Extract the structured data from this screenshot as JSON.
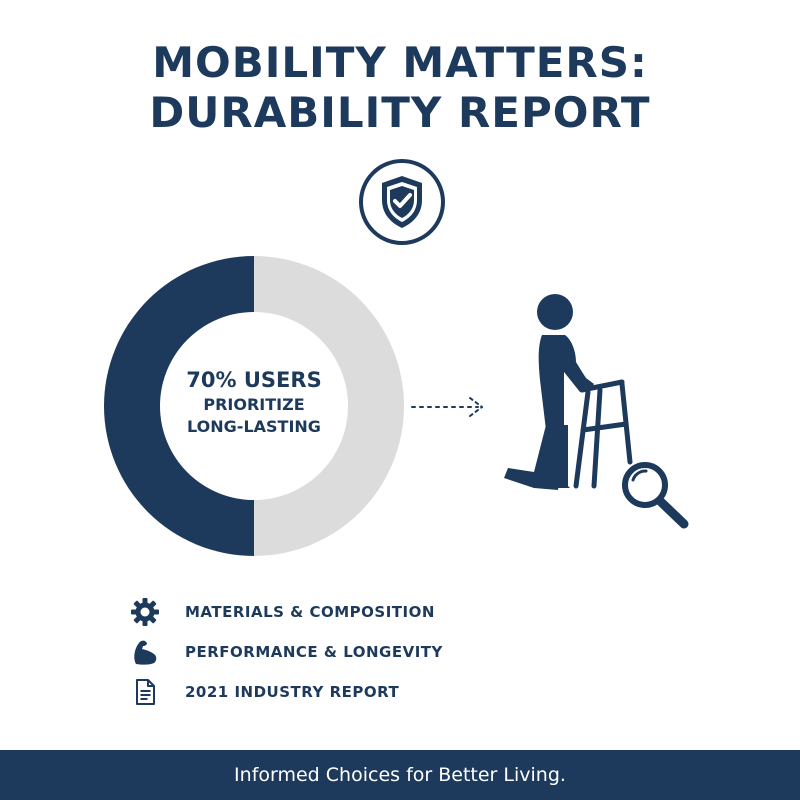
{
  "header": {
    "title_line1": "MOBILITY MATTERS:",
    "title_line2": "DURABILITY REPORT"
  },
  "icons": {
    "badge": "shield-check-icon",
    "figure": "person-with-walker-icon",
    "search": "magnifying-glass-icon",
    "arrow": "dotted-arrow-icon"
  },
  "donut": {
    "percent": 70,
    "stat_label": "70% USERS",
    "desc_line1": "PRIORITIZE",
    "desc_line2": "LONG-LASTING",
    "filled_color": "#1d3a5c",
    "remaining_color": "#dcdcdc"
  },
  "features": [
    {
      "icon": "gear-icon",
      "label": "MATERIALS & COMPOSITION"
    },
    {
      "icon": "flexed-arm-icon",
      "label": "PERFORMANCE & LONGEVITY"
    },
    {
      "icon": "document-icon",
      "label": "2021 INDUSTRY REPORT"
    }
  ],
  "footer": {
    "tagline": "Informed Choices for Better Living."
  },
  "colors": {
    "primary": "#1d3a5c",
    "light_gray": "#dcdcdc",
    "background": "#ffffff"
  }
}
